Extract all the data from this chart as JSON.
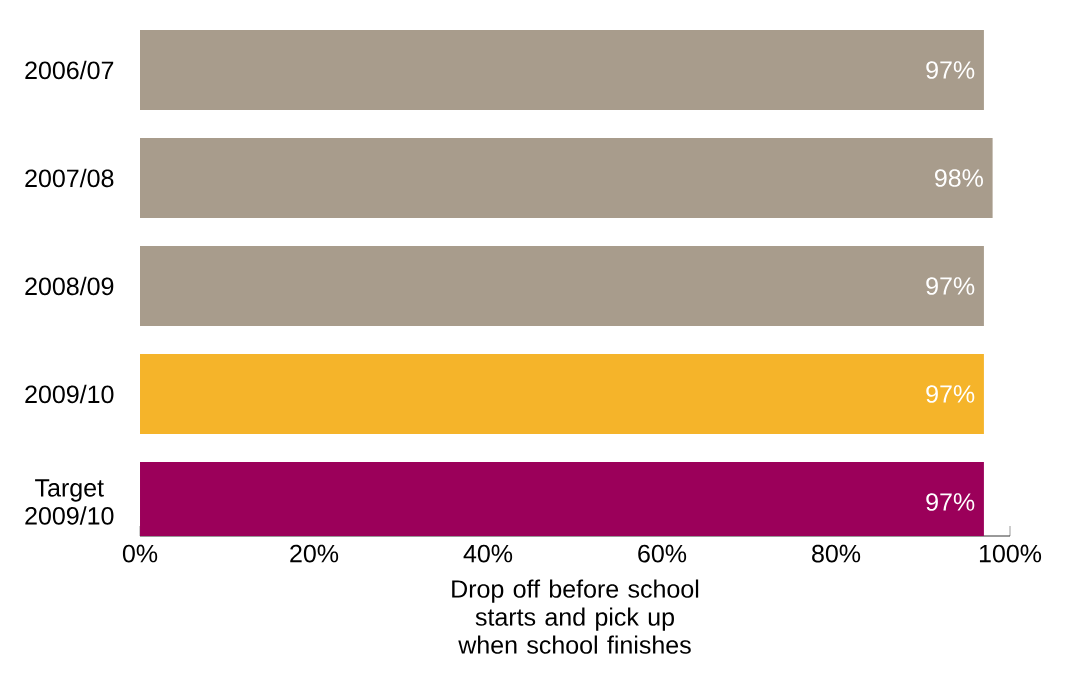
{
  "chart_data": {
    "type": "bar",
    "orientation": "horizontal",
    "categories": [
      "2006/07",
      "2007/08",
      "2008/09",
      "2009/10",
      "Target 2009/10"
    ],
    "values": [
      97,
      98,
      97,
      97,
      97
    ],
    "value_labels": [
      "97%",
      "98%",
      "97%",
      "97%",
      "97%"
    ],
    "colors": [
      "#a89c8c",
      "#a89c8c",
      "#a89c8c",
      "#f5b42a",
      "#9b005a"
    ],
    "xlabel": "Drop off before school starts and pick up when school finishes",
    "xlim": [
      0,
      100
    ],
    "xticks": [
      {
        "value": 0,
        "label": "0%"
      },
      {
        "value": 20,
        "label": "20%"
      },
      {
        "value": 40,
        "label": "40%"
      },
      {
        "value": 60,
        "label": "60%"
      },
      {
        "value": 80,
        "label": "80%"
      },
      {
        "value": 100,
        "label": "100%"
      }
    ],
    "grid": false
  }
}
